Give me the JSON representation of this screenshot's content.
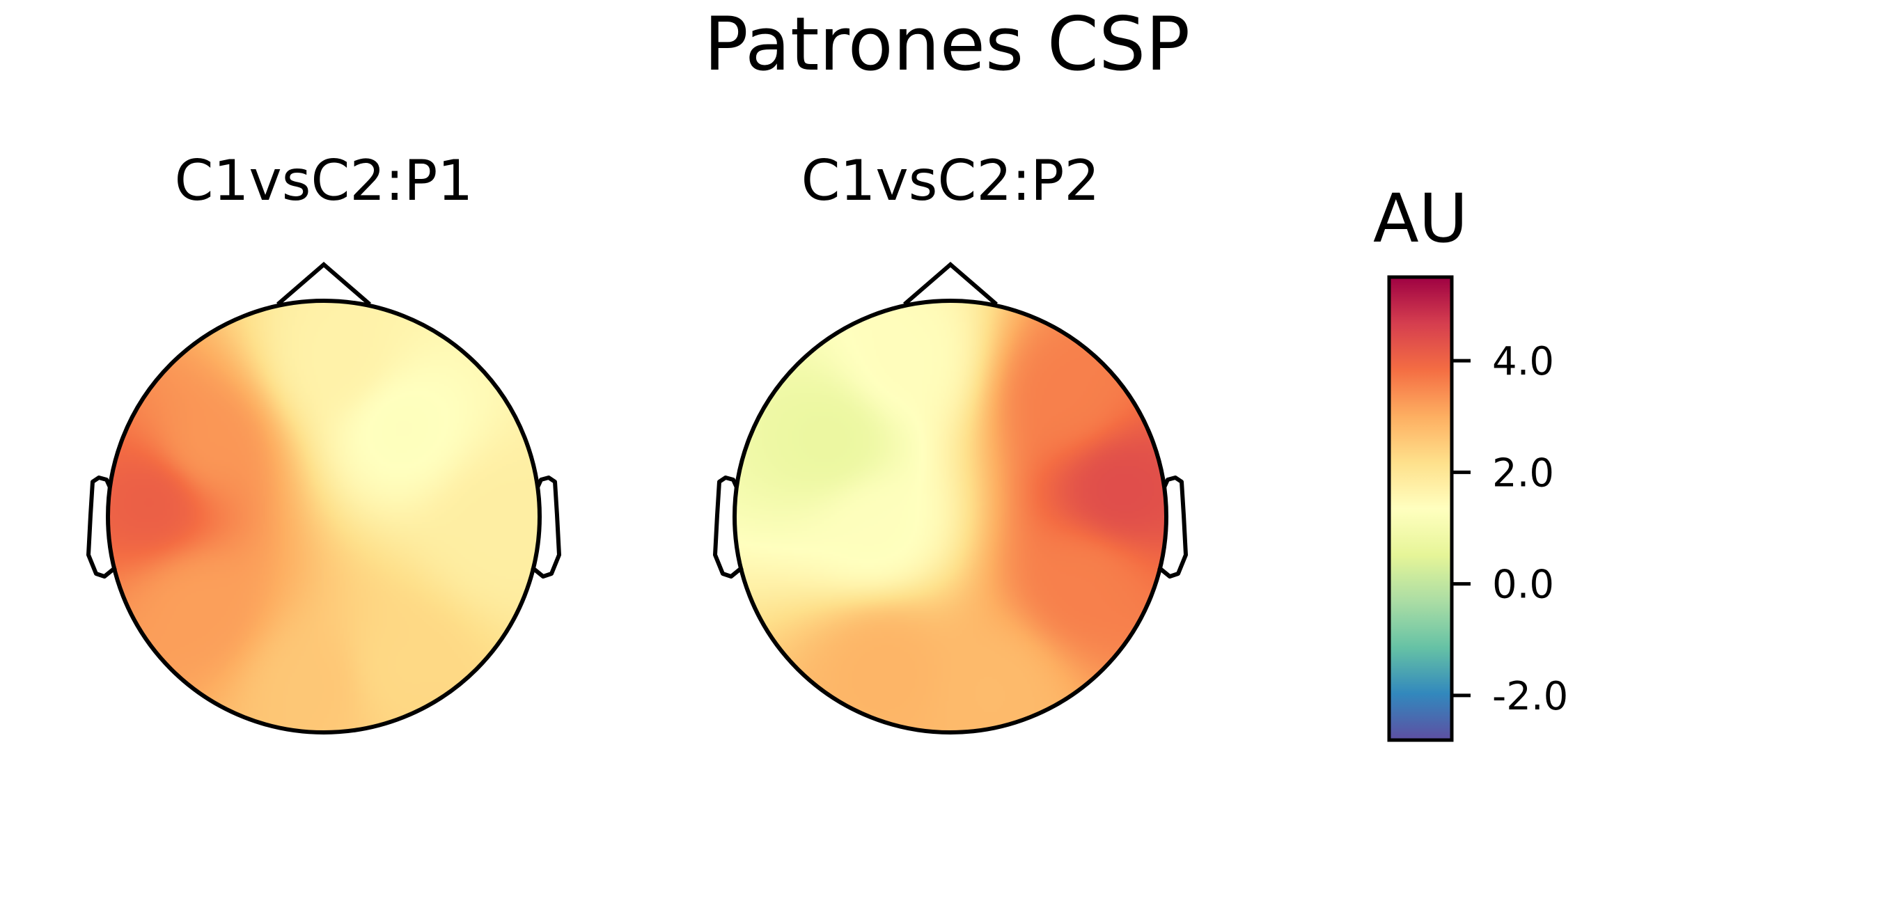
{
  "figure": {
    "title": "Patrones CSP"
  },
  "chart_data": {
    "type": "heatmap",
    "title": "Patrones CSP",
    "subtype": "topographic scalp map",
    "colormap": "Spectral_r",
    "vmin": -2.8,
    "vmax": 5.5,
    "colorbar": {
      "label": "AU",
      "ticks": [
        {
          "value": 4.0,
          "label": "4.0"
        },
        {
          "value": 2.0,
          "label": "2.0"
        },
        {
          "value": 0.0,
          "label": "0.0"
        },
        {
          "value": -2.0,
          "label": "-2.0"
        }
      ]
    },
    "maps": [
      {
        "title": "C1vsC2:P1",
        "base": 2.2,
        "sources": [
          {
            "x": -0.78,
            "y": 0.08,
            "value": 4.1
          },
          {
            "x": -0.55,
            "y": 0.32,
            "value": 3.3
          },
          {
            "x": -0.58,
            "y": -0.42,
            "value": 3.2
          },
          {
            "x": 0.35,
            "y": 0.42,
            "value": 1.3
          },
          {
            "x": 0.08,
            "y": 0.72,
            "value": 1.7
          },
          {
            "x": 0.35,
            "y": -0.7,
            "value": 2.3
          },
          {
            "x": -0.05,
            "y": -0.78,
            "value": 2.6
          },
          {
            "x": 0.82,
            "y": -0.05,
            "value": 1.8
          }
        ]
      },
      {
        "title": "C1vsC2:P2",
        "base": 2.4,
        "sources": [
          {
            "x": 0.78,
            "y": 0.12,
            "value": 4.4
          },
          {
            "x": 0.62,
            "y": -0.3,
            "value": 3.6
          },
          {
            "x": 0.55,
            "y": 0.55,
            "value": 3.6
          },
          {
            "x": -0.55,
            "y": 0.35,
            "value": 0.7
          },
          {
            "x": -0.22,
            "y": 0.72,
            "value": 1.4
          },
          {
            "x": -0.35,
            "y": -0.05,
            "value": 1.3
          },
          {
            "x": -0.3,
            "y": -0.7,
            "value": 2.9
          },
          {
            "x": 0.2,
            "y": -0.8,
            "value": 2.8
          }
        ]
      }
    ]
  }
}
